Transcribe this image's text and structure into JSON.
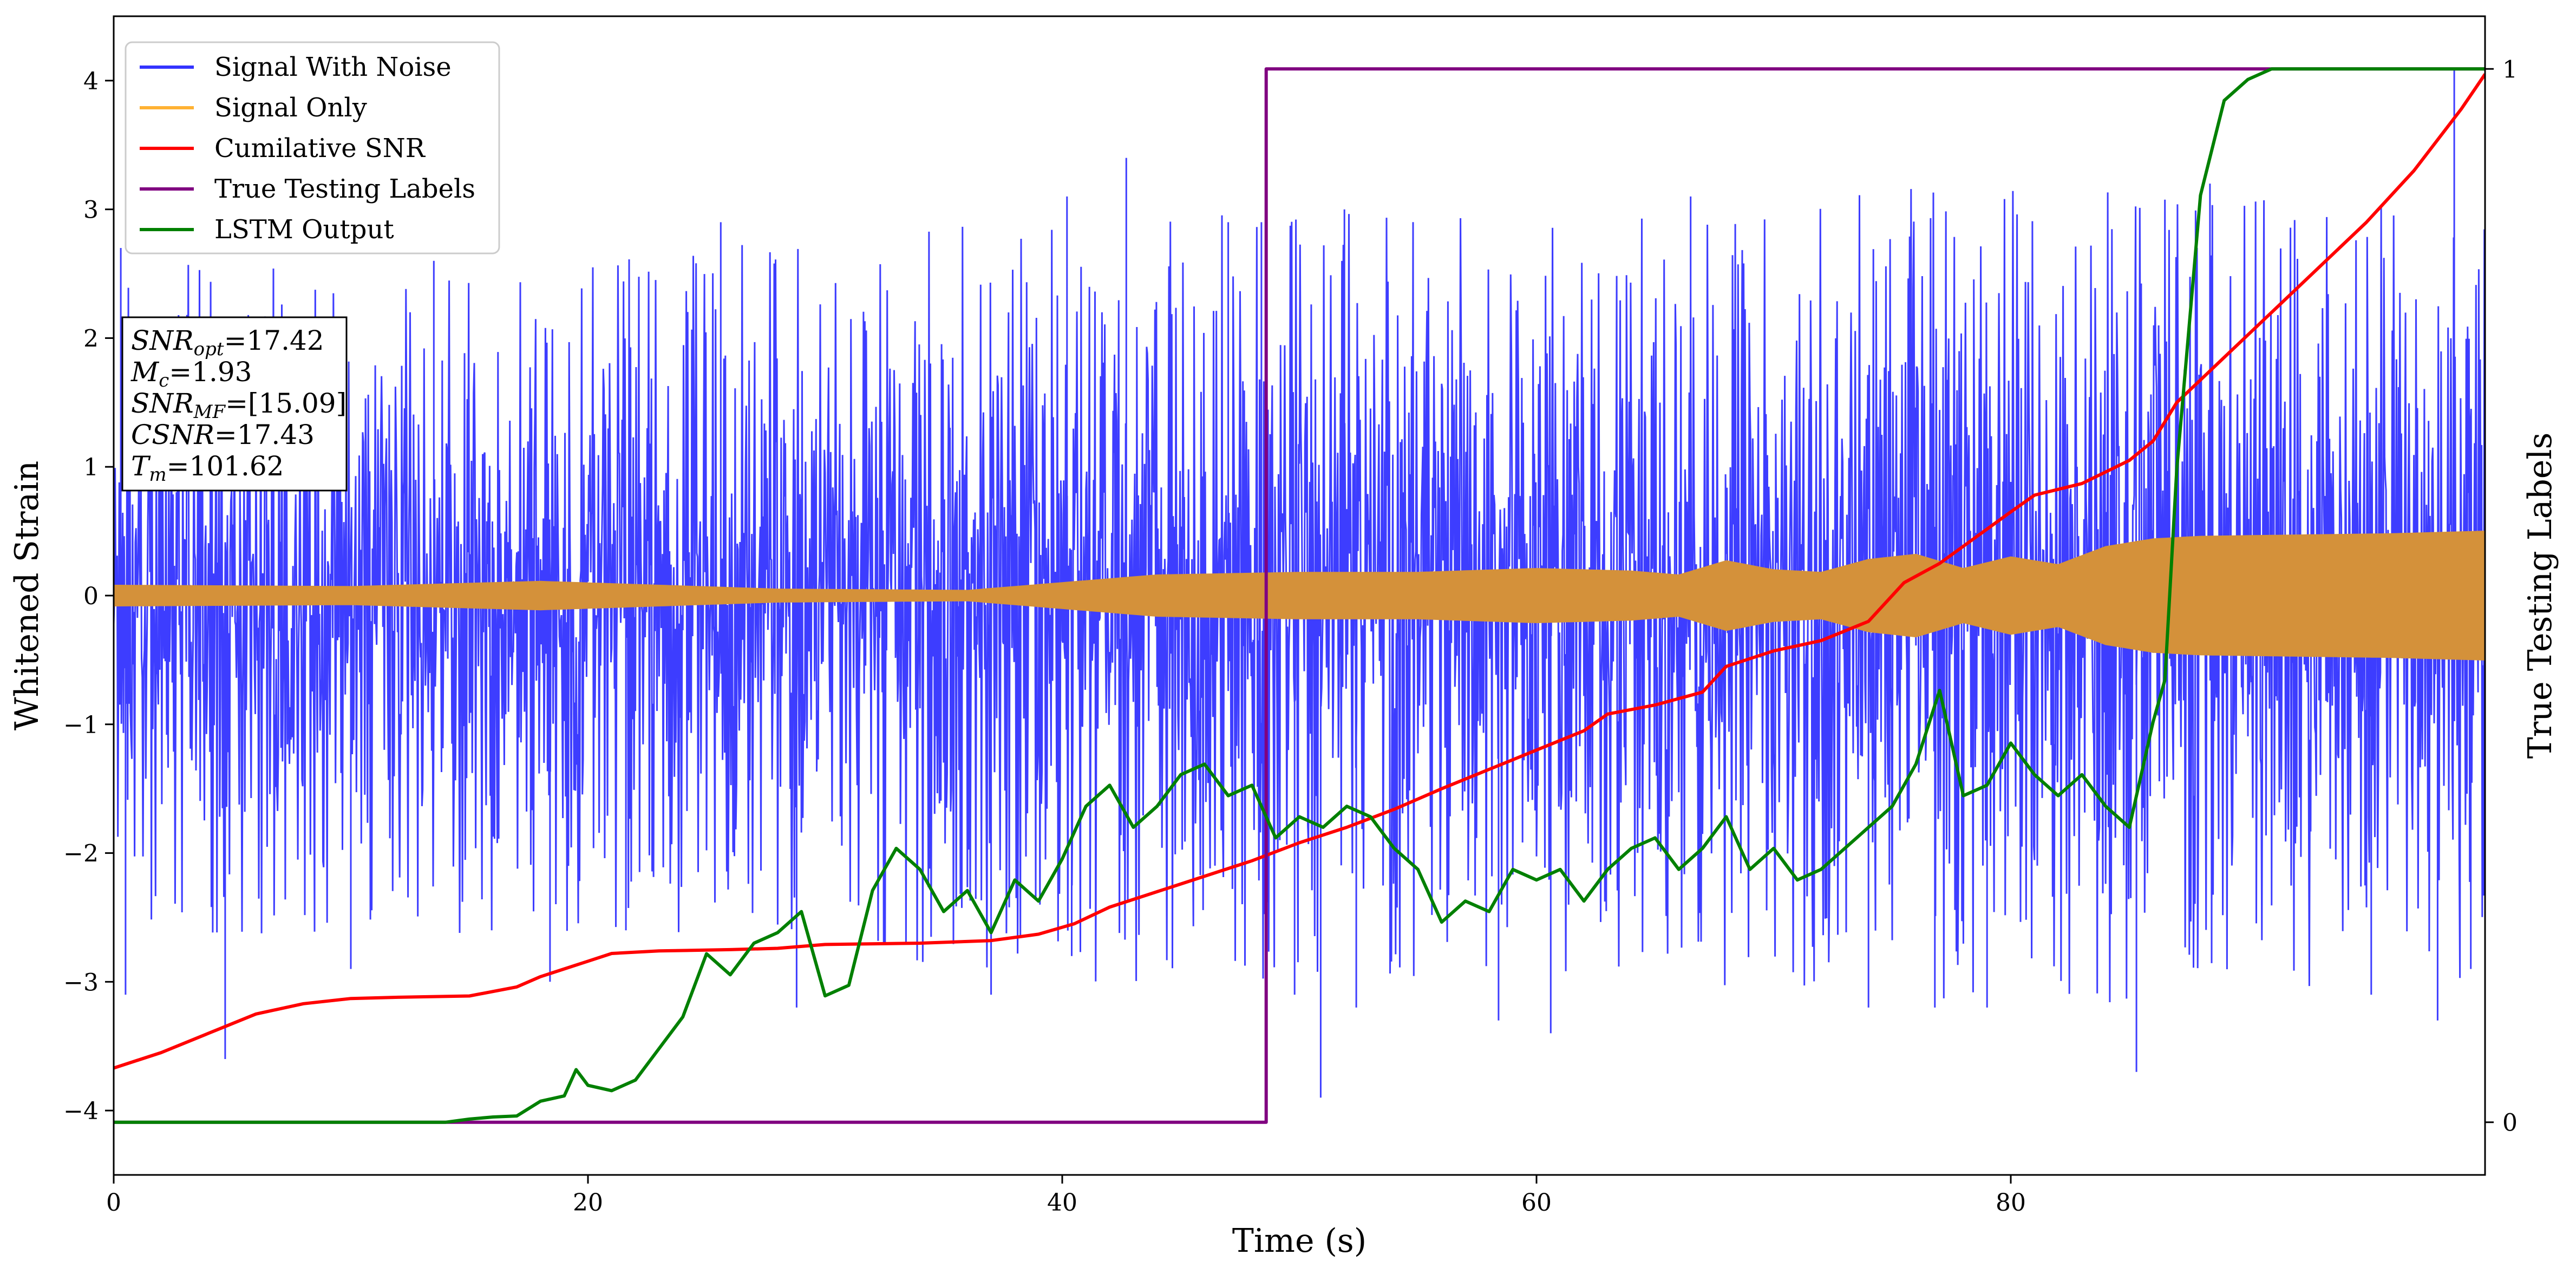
{
  "chart_data": {
    "type": "line",
    "xlabel": "Time (s)",
    "ylabel": "Whitened Strain",
    "y2label": "True Testing Labels",
    "xlim": [
      0,
      100
    ],
    "ylim": [
      -4.5,
      4.5
    ],
    "y2lim": [
      -0.05,
      1.05
    ],
    "x_ticks": [
      0,
      20,
      40,
      60,
      80
    ],
    "x_tick_labels": [
      "0",
      "20",
      "40",
      "60",
      "80"
    ],
    "y_ticks": [
      -4,
      -3,
      -2,
      -1,
      0,
      1,
      2,
      3,
      4
    ],
    "y_tick_labels": [
      "−4",
      "−3",
      "−2",
      "−1",
      "0",
      "1",
      "2",
      "3",
      "4"
    ],
    "y2_ticks": [
      0,
      1
    ],
    "y2_tick_labels": [
      "0",
      "1"
    ],
    "grid": false,
    "legend_position": "top-left",
    "series": [
      {
        "name": "Signal With Noise",
        "color": "#3333ff",
        "axis": "left",
        "noise_band": [
          {
            "x": 0,
            "core": 0.95,
            "peak": 2.7
          },
          {
            "x": 20,
            "core": 1.0,
            "peak": 2.6
          },
          {
            "x": 40,
            "core": 1.1,
            "peak": 3.0
          },
          {
            "x": 60,
            "core": 1.2,
            "peak": 3.0
          },
          {
            "x": 80,
            "core": 1.3,
            "peak": 3.2
          },
          {
            "x": 100,
            "core": 1.2,
            "peak": 3.0
          }
        ],
        "spikes": [
          {
            "x": 0.3,
            "y": 2.7
          },
          {
            "x": 0.5,
            "y": -3.1
          },
          {
            "x": 4.7,
            "y": -3.6
          },
          {
            "x": 10,
            "y": -2.9
          },
          {
            "x": 13.5,
            "y": 2.6
          },
          {
            "x": 18.4,
            "y": -3.0
          },
          {
            "x": 21.6,
            "y": -2.6
          },
          {
            "x": 25.6,
            "y": 2.9
          },
          {
            "x": 28.8,
            "y": -3.2
          },
          {
            "x": 37,
            "y": -3.1
          },
          {
            "x": 40.2,
            "y": 3.1
          },
          {
            "x": 40.4,
            "y": -2.8
          },
          {
            "x": 42.7,
            "y": 3.4
          },
          {
            "x": 47,
            "y": 2.9
          },
          {
            "x": 48.4,
            "y": 2.9
          },
          {
            "x": 49.8,
            "y": -3.1
          },
          {
            "x": 50.9,
            "y": -3.9
          },
          {
            "x": 51.9,
            "y": 3.0
          },
          {
            "x": 52.4,
            "y": -3.2
          },
          {
            "x": 58.4,
            "y": -3.3
          },
          {
            "x": 60.6,
            "y": -3.4
          },
          {
            "x": 66.5,
            "y": 3.1
          },
          {
            "x": 74,
            "y": -3.2
          },
          {
            "x": 76.8,
            "y": -3.2
          },
          {
            "x": 79,
            "y": -3.2
          },
          {
            "x": 85.3,
            "y": -3.7
          },
          {
            "x": 88.4,
            "y": 3.2
          },
          {
            "x": 95.2,
            "y": -3.1
          },
          {
            "x": 98,
            "y": -3.3
          },
          {
            "x": 99.4,
            "y": -2.9
          },
          {
            "x": 98.7,
            "y": 4.1
          }
        ]
      },
      {
        "name": "Signal Only",
        "color": "#ffb233",
        "fill": "#d4913a",
        "axis": "left",
        "envelope": [
          [
            0,
            0.08
          ],
          [
            10,
            0.07
          ],
          [
            18,
            0.11
          ],
          [
            28,
            0.05
          ],
          [
            36,
            0.04
          ],
          [
            44,
            0.16
          ],
          [
            50,
            0.18
          ],
          [
            55,
            0.18
          ],
          [
            60,
            0.21
          ],
          [
            64,
            0.19
          ],
          [
            66,
            0.16
          ],
          [
            68,
            0.27
          ],
          [
            70,
            0.2
          ],
          [
            72,
            0.18
          ],
          [
            74,
            0.28
          ],
          [
            76,
            0.32
          ],
          [
            78,
            0.21
          ],
          [
            80,
            0.3
          ],
          [
            82,
            0.24
          ],
          [
            84,
            0.38
          ],
          [
            86,
            0.44
          ],
          [
            88,
            0.46
          ],
          [
            92,
            0.47
          ],
          [
            96,
            0.48
          ],
          [
            100,
            0.5
          ]
        ]
      },
      {
        "name": "Cumilative SNR",
        "color": "#ff0000",
        "axis": "left",
        "points": [
          [
            0,
            -3.67
          ],
          [
            2,
            -3.55
          ],
          [
            4,
            -3.4
          ],
          [
            6,
            -3.25
          ],
          [
            8,
            -3.17
          ],
          [
            10,
            -3.13
          ],
          [
            12,
            -3.12
          ],
          [
            15,
            -3.11
          ],
          [
            17,
            -3.04
          ],
          [
            18,
            -2.96
          ],
          [
            20,
            -2.84
          ],
          [
            21,
            -2.78
          ],
          [
            23,
            -2.76
          ],
          [
            26,
            -2.75
          ],
          [
            28,
            -2.74
          ],
          [
            30,
            -2.71
          ],
          [
            34,
            -2.7
          ],
          [
            37,
            -2.68
          ],
          [
            39,
            -2.63
          ],
          [
            40.5,
            -2.55
          ],
          [
            42,
            -2.42
          ],
          [
            44,
            -2.3
          ],
          [
            46,
            -2.18
          ],
          [
            48,
            -2.06
          ],
          [
            50,
            -1.92
          ],
          [
            52,
            -1.8
          ],
          [
            54,
            -1.66
          ],
          [
            56,
            -1.5
          ],
          [
            58,
            -1.35
          ],
          [
            60,
            -1.2
          ],
          [
            62,
            -1.05
          ],
          [
            63,
            -0.92
          ],
          [
            65,
            -0.85
          ],
          [
            67,
            -0.75
          ],
          [
            68,
            -0.55
          ],
          [
            70,
            -0.43
          ],
          [
            72,
            -0.35
          ],
          [
            74,
            -0.2
          ],
          [
            75.5,
            0.1
          ],
          [
            77,
            0.25
          ],
          [
            78.5,
            0.45
          ],
          [
            80,
            0.65
          ],
          [
            81,
            0.78
          ],
          [
            83,
            0.87
          ],
          [
            85,
            1.05
          ],
          [
            86,
            1.2
          ],
          [
            87,
            1.5
          ],
          [
            89,
            1.85
          ],
          [
            91,
            2.2
          ],
          [
            93,
            2.55
          ],
          [
            95,
            2.9
          ],
          [
            97,
            3.3
          ],
          [
            99,
            3.78
          ],
          [
            100,
            4.05
          ]
        ]
      },
      {
        "name": "True Testing Labels",
        "color": "#800080",
        "axis": "right",
        "points": [
          [
            0,
            0
          ],
          [
            48.6,
            0
          ],
          [
            48.6,
            1
          ],
          [
            100,
            1
          ]
        ]
      },
      {
        "name": "LSTM Output",
        "color": "#008000",
        "axis": "right",
        "points": [
          [
            0,
            0
          ],
          [
            14,
            0
          ],
          [
            15,
            0.003
          ],
          [
            16,
            0.005
          ],
          [
            17,
            0.006
          ],
          [
            18,
            0.02
          ],
          [
            19,
            0.025
          ],
          [
            19.5,
            0.05
          ],
          [
            20,
            0.035
          ],
          [
            21,
            0.03
          ],
          [
            22,
            0.04
          ],
          [
            23,
            0.07
          ],
          [
            24,
            0.1
          ],
          [
            25,
            0.16
          ],
          [
            26,
            0.14
          ],
          [
            27,
            0.17
          ],
          [
            28,
            0.18
          ],
          [
            29,
            0.2
          ],
          [
            30,
            0.12
          ],
          [
            31,
            0.13
          ],
          [
            32,
            0.22
          ],
          [
            33,
            0.26
          ],
          [
            34,
            0.24
          ],
          [
            35,
            0.2
          ],
          [
            36,
            0.22
          ],
          [
            37,
            0.18
          ],
          [
            38,
            0.23
          ],
          [
            39,
            0.21
          ],
          [
            40,
            0.25
          ],
          [
            41,
            0.3
          ],
          [
            42,
            0.32
          ],
          [
            43,
            0.28
          ],
          [
            44,
            0.3
          ],
          [
            45,
            0.33
          ],
          [
            46,
            0.34
          ],
          [
            47,
            0.31
          ],
          [
            48,
            0.32
          ],
          [
            49,
            0.27
          ],
          [
            50,
            0.29
          ],
          [
            51,
            0.28
          ],
          [
            52,
            0.3
          ],
          [
            53,
            0.29
          ],
          [
            54,
            0.26
          ],
          [
            55,
            0.24
          ],
          [
            56,
            0.19
          ],
          [
            57,
            0.21
          ],
          [
            58,
            0.2
          ],
          [
            59,
            0.24
          ],
          [
            60,
            0.23
          ],
          [
            61,
            0.24
          ],
          [
            62,
            0.21
          ],
          [
            63,
            0.24
          ],
          [
            64,
            0.26
          ],
          [
            65,
            0.27
          ],
          [
            66,
            0.24
          ],
          [
            67,
            0.26
          ],
          [
            68,
            0.29
          ],
          [
            69,
            0.24
          ],
          [
            70,
            0.26
          ],
          [
            71,
            0.23
          ],
          [
            72,
            0.24
          ],
          [
            73,
            0.26
          ],
          [
            74,
            0.28
          ],
          [
            75,
            0.3
          ],
          [
            76,
            0.34
          ],
          [
            77,
            0.41
          ],
          [
            78,
            0.31
          ],
          [
            79,
            0.32
          ],
          [
            80,
            0.36
          ],
          [
            81,
            0.33
          ],
          [
            82,
            0.31
          ],
          [
            83,
            0.33
          ],
          [
            84,
            0.3
          ],
          [
            85,
            0.28
          ],
          [
            86,
            0.38
          ],
          [
            86.5,
            0.42
          ],
          [
            87,
            0.62
          ],
          [
            88,
            0.88
          ],
          [
            89,
            0.97
          ],
          [
            90,
            0.99
          ],
          [
            91,
            1.0
          ],
          [
            100,
            1.0
          ]
        ]
      }
    ],
    "annotation": {
      "lines": [
        {
          "base": "SNR",
          "sub": "opt",
          "rest": "=17.42"
        },
        {
          "base": "M",
          "sub": "c",
          "rest": "=1.93"
        },
        {
          "base": "SNR",
          "sub": "MF",
          "rest": "=[15.09]"
        },
        {
          "base": "CSNR",
          "sub": "",
          "rest": "=17.43"
        },
        {
          "base": "T",
          "sub": "m",
          "rest": "=101.62"
        }
      ]
    }
  }
}
